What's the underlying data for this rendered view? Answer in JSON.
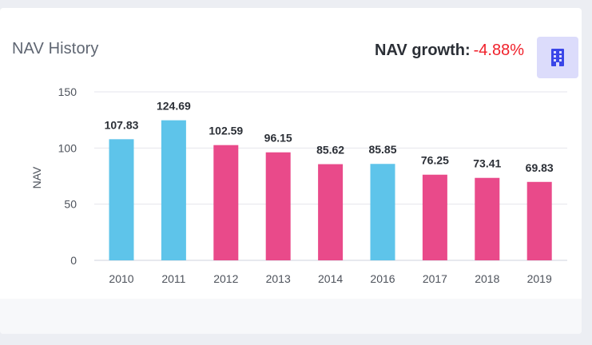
{
  "header": {
    "title": "NAV History",
    "growth_label": "NAV growth:",
    "growth_value": "-4.88%",
    "building_icon": "building-icon"
  },
  "colors": {
    "blue": "#5ec4ea",
    "pink": "#e94a8a",
    "growth_negative": "#f0202a",
    "grid": "#e4e6ec"
  },
  "chart_data": {
    "type": "bar",
    "title": "NAV History",
    "xlabel": "",
    "ylabel": "NAV",
    "ylim": [
      0,
      150
    ],
    "yticks": [
      0,
      50,
      100,
      150
    ],
    "categories": [
      "2010",
      "2011",
      "2012",
      "2013",
      "2014",
      "2016",
      "2017",
      "2018",
      "2019"
    ],
    "values": [
      107.83,
      124.69,
      102.59,
      96.15,
      85.62,
      85.85,
      76.25,
      73.41,
      69.83
    ],
    "value_labels": [
      "107.83",
      "124.69",
      "102.59",
      "96.15",
      "85.62",
      "85.85",
      "76.25",
      "73.41",
      "69.83"
    ],
    "bar_colors": [
      "blue",
      "blue",
      "pink",
      "pink",
      "pink",
      "blue",
      "pink",
      "pink",
      "pink"
    ],
    "grid": true
  }
}
